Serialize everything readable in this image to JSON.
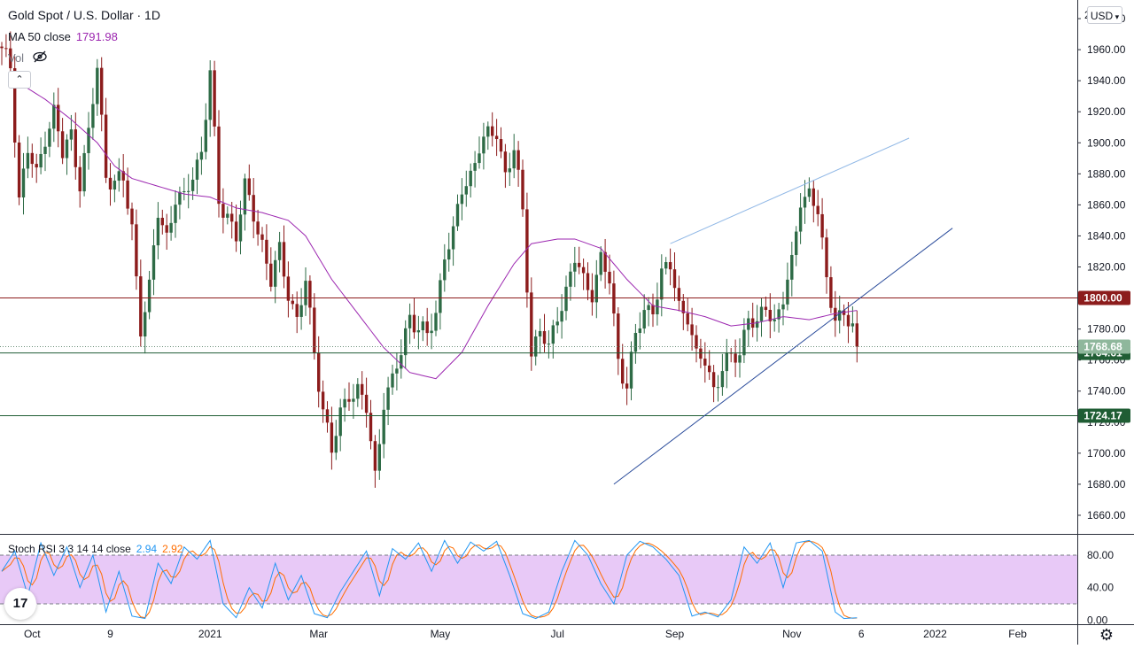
{
  "header": {
    "title": "Gold Spot / U.S. Dollar · 1D",
    "ma_label": "MA 50 close",
    "ma_value": "1791.98",
    "vol_label": "Vol",
    "currency": "USD",
    "first_price_partial": "2"
  },
  "colors": {
    "up": "#2e6b46",
    "down": "#8c1c1c",
    "ma": "#9c27b0",
    "trend": "#2b4c9b",
    "trend_light": "#90b8e6",
    "h1800": "#8c1c1c",
    "h_green": "#1f5d34",
    "stoch_k": "#2196f3",
    "stoch_d": "#ff6d00",
    "stoch_band": "#e8c9f7"
  },
  "chart_data": [
    {
      "type": "candlestick",
      "title": "Gold Spot / U.S. Dollar · 1D",
      "yticks": [
        1660,
        1680,
        1700,
        1720,
        1740,
        1760,
        1780,
        1800,
        1820,
        1840,
        1860,
        1880,
        1900,
        1920,
        1940,
        1960,
        1980
      ],
      "ylim": [
        1648,
        1992
      ],
      "xticks": [
        {
          "label": "Oct",
          "bar": 7
        },
        {
          "label": "9",
          "bar": 25
        },
        {
          "label": "2021",
          "bar": 48
        },
        {
          "label": "Mar",
          "bar": 73
        },
        {
          "label": "May",
          "bar": 101
        },
        {
          "label": "Jul",
          "bar": 128
        },
        {
          "label": "Sep",
          "bar": 155
        },
        {
          "label": "Nov",
          "bar": 182
        },
        {
          "label": "6",
          "bar": 198
        },
        {
          "label": "2022",
          "bar": 215
        },
        {
          "label": "Feb",
          "bar": 234
        }
      ],
      "ohlc_anchors": [
        {
          "bar": 0,
          "close": 1958
        },
        {
          "bar": 2,
          "close": 1950
        },
        {
          "bar": 4,
          "close": 1865
        },
        {
          "bar": 6,
          "close": 1895
        },
        {
          "bar": 8,
          "close": 1878
        },
        {
          "bar": 10,
          "close": 1905
        },
        {
          "bar": 12,
          "close": 1920
        },
        {
          "bar": 14,
          "close": 1892
        },
        {
          "bar": 16,
          "close": 1905
        },
        {
          "bar": 18,
          "close": 1875
        },
        {
          "bar": 20,
          "close": 1905
        },
        {
          "bar": 22,
          "close": 1948
        },
        {
          "bar": 24,
          "close": 1880
        },
        {
          "bar": 26,
          "close": 1875
        },
        {
          "bar": 28,
          "close": 1875
        },
        {
          "bar": 30,
          "close": 1845
        },
        {
          "bar": 32,
          "close": 1782
        },
        {
          "bar": 34,
          "close": 1805
        },
        {
          "bar": 36,
          "close": 1855
        },
        {
          "bar": 38,
          "close": 1840
        },
        {
          "bar": 40,
          "close": 1865
        },
        {
          "bar": 42,
          "close": 1862
        },
        {
          "bar": 44,
          "close": 1880
        },
        {
          "bar": 46,
          "close": 1895
        },
        {
          "bar": 48,
          "close": 1945
        },
        {
          "bar": 50,
          "close": 1860
        },
        {
          "bar": 52,
          "close": 1855
        },
        {
          "bar": 54,
          "close": 1840
        },
        {
          "bar": 56,
          "close": 1870
        },
        {
          "bar": 58,
          "close": 1855
        },
        {
          "bar": 60,
          "close": 1835
        },
        {
          "bar": 62,
          "close": 1810
        },
        {
          "bar": 64,
          "close": 1830
        },
        {
          "bar": 66,
          "close": 1805
        },
        {
          "bar": 68,
          "close": 1785
        },
        {
          "bar": 70,
          "close": 1810
        },
        {
          "bar": 72,
          "close": 1765
        },
        {
          "bar": 74,
          "close": 1730
        },
        {
          "bar": 76,
          "close": 1700
        },
        {
          "bar": 78,
          "close": 1725
        },
        {
          "bar": 80,
          "close": 1740
        },
        {
          "bar": 82,
          "close": 1740
        },
        {
          "bar": 84,
          "close": 1728
        },
        {
          "bar": 86,
          "close": 1685
        },
        {
          "bar": 88,
          "close": 1735
        },
        {
          "bar": 90,
          "close": 1745
        },
        {
          "bar": 92,
          "close": 1765
        },
        {
          "bar": 94,
          "close": 1790
        },
        {
          "bar": 96,
          "close": 1780
        },
        {
          "bar": 98,
          "close": 1775
        },
        {
          "bar": 100,
          "close": 1790
        },
        {
          "bar": 102,
          "close": 1830
        },
        {
          "bar": 104,
          "close": 1840
        },
        {
          "bar": 106,
          "close": 1870
        },
        {
          "bar": 108,
          "close": 1880
        },
        {
          "bar": 110,
          "close": 1898
        },
        {
          "bar": 112,
          "close": 1903
        },
        {
          "bar": 114,
          "close": 1908
        },
        {
          "bar": 116,
          "close": 1880
        },
        {
          "bar": 118,
          "close": 1895
        },
        {
          "bar": 120,
          "close": 1855
        },
        {
          "bar": 122,
          "close": 1765
        },
        {
          "bar": 124,
          "close": 1780
        },
        {
          "bar": 126,
          "close": 1765
        },
        {
          "bar": 128,
          "close": 1790
        },
        {
          "bar": 130,
          "close": 1805
        },
        {
          "bar": 132,
          "close": 1825
        },
        {
          "bar": 134,
          "close": 1810
        },
        {
          "bar": 136,
          "close": 1805
        },
        {
          "bar": 138,
          "close": 1825
        },
        {
          "bar": 140,
          "close": 1810
        },
        {
          "bar": 142,
          "close": 1760
        },
        {
          "bar": 144,
          "close": 1745
        },
        {
          "bar": 146,
          "close": 1775
        },
        {
          "bar": 148,
          "close": 1790
        },
        {
          "bar": 150,
          "close": 1795
        },
        {
          "bar": 152,
          "close": 1815
        },
        {
          "bar": 154,
          "close": 1820
        },
        {
          "bar": 156,
          "close": 1795
        },
        {
          "bar": 158,
          "close": 1790
        },
        {
          "bar": 160,
          "close": 1760
        },
        {
          "bar": 162,
          "close": 1760
        },
        {
          "bar": 164,
          "close": 1742
        },
        {
          "bar": 166,
          "close": 1755
        },
        {
          "bar": 168,
          "close": 1760
        },
        {
          "bar": 170,
          "close": 1765
        },
        {
          "bar": 172,
          "close": 1790
        },
        {
          "bar": 174,
          "close": 1780
        },
        {
          "bar": 176,
          "close": 1795
        },
        {
          "bar": 178,
          "close": 1785
        },
        {
          "bar": 180,
          "close": 1800
        },
        {
          "bar": 182,
          "close": 1820
        },
        {
          "bar": 184,
          "close": 1865
        },
        {
          "bar": 186,
          "close": 1868
        },
        {
          "bar": 188,
          "close": 1855
        },
        {
          "bar": 190,
          "close": 1810
        },
        {
          "bar": 192,
          "close": 1790
        },
        {
          "bar": 194,
          "close": 1788
        },
        {
          "bar": 196,
          "close": 1780
        },
        {
          "bar": 197,
          "close": 1768.68
        }
      ],
      "ma50_anchors": [
        {
          "bar": 3,
          "close": 1945
        },
        {
          "bar": 6,
          "close": 1935
        },
        {
          "bar": 10,
          "close": 1928
        },
        {
          "bar": 16,
          "close": 1915
        },
        {
          "bar": 22,
          "close": 1900
        },
        {
          "bar": 26,
          "close": 1885
        },
        {
          "bar": 30,
          "close": 1877
        },
        {
          "bar": 36,
          "close": 1872
        },
        {
          "bar": 42,
          "close": 1867
        },
        {
          "bar": 48,
          "close": 1865
        },
        {
          "bar": 54,
          "close": 1858
        },
        {
          "bar": 60,
          "close": 1855
        },
        {
          "bar": 66,
          "close": 1850
        },
        {
          "bar": 70,
          "close": 1840
        },
        {
          "bar": 76,
          "close": 1812
        },
        {
          "bar": 82,
          "close": 1790
        },
        {
          "bar": 88,
          "close": 1768
        },
        {
          "bar": 94,
          "close": 1752
        },
        {
          "bar": 100,
          "close": 1748
        },
        {
          "bar": 106,
          "close": 1765
        },
        {
          "bar": 112,
          "close": 1795
        },
        {
          "bar": 118,
          "close": 1822
        },
        {
          "bar": 122,
          "close": 1835
        },
        {
          "bar": 128,
          "close": 1838
        },
        {
          "bar": 132,
          "close": 1838
        },
        {
          "bar": 138,
          "close": 1832
        },
        {
          "bar": 144,
          "close": 1812
        },
        {
          "bar": 150,
          "close": 1795
        },
        {
          "bar": 156,
          "close": 1792
        },
        {
          "bar": 162,
          "close": 1788
        },
        {
          "bar": 168,
          "close": 1782
        },
        {
          "bar": 174,
          "close": 1784
        },
        {
          "bar": 180,
          "close": 1788
        },
        {
          "bar": 186,
          "close": 1786
        },
        {
          "bar": 192,
          "close": 1790
        },
        {
          "bar": 197,
          "close": 1791.98
        }
      ],
      "hlines": [
        {
          "price": 1800.0,
          "label": "1800.00",
          "color_key": "h1800"
        },
        {
          "price": 1764.61,
          "label": "1764.61",
          "color_key": "h_green"
        },
        {
          "price": 1724.17,
          "label": "1724.17",
          "color_key": "h_green"
        }
      ],
      "last_price": {
        "price": 1768.68,
        "label": "1768.68"
      },
      "trendlines": [
        {
          "from": {
            "bar": 141,
            "price": 1680
          },
          "to": {
            "bar": 219,
            "price": 1845
          },
          "color_key": "trend"
        },
        {
          "from": {
            "bar": 154,
            "price": 1835
          },
          "to": {
            "bar": 209,
            "price": 1903
          },
          "color_key": "trend_light"
        }
      ]
    },
    {
      "type": "line",
      "title": "Stoch RSI 3 3 14 14 close",
      "values_shown": {
        "k": "2.94",
        "d": "2.92"
      },
      "yticks": [
        0,
        40,
        80
      ],
      "ytick_labels": [
        "0.00",
        "40.00",
        "80.00"
      ],
      "band": [
        20,
        80
      ],
      "ylim": [
        -5,
        105
      ],
      "k_anchors": [
        {
          "bar": 0,
          "v": 60
        },
        {
          "bar": 3,
          "v": 85
        },
        {
          "bar": 6,
          "v": 30
        },
        {
          "bar": 9,
          "v": 95
        },
        {
          "bar": 12,
          "v": 55
        },
        {
          "bar": 15,
          "v": 90
        },
        {
          "bar": 18,
          "v": 40
        },
        {
          "bar": 21,
          "v": 80
        },
        {
          "bar": 24,
          "v": 10
        },
        {
          "bar": 27,
          "v": 60
        },
        {
          "bar": 30,
          "v": 5
        },
        {
          "bar": 33,
          "v": 2
        },
        {
          "bar": 36,
          "v": 70
        },
        {
          "bar": 39,
          "v": 45
        },
        {
          "bar": 42,
          "v": 90
        },
        {
          "bar": 45,
          "v": 75
        },
        {
          "bar": 48,
          "v": 98
        },
        {
          "bar": 51,
          "v": 20
        },
        {
          "bar": 54,
          "v": 3
        },
        {
          "bar": 57,
          "v": 40
        },
        {
          "bar": 60,
          "v": 15
        },
        {
          "bar": 63,
          "v": 70
        },
        {
          "bar": 66,
          "v": 25
        },
        {
          "bar": 69,
          "v": 55
        },
        {
          "bar": 72,
          "v": 8
        },
        {
          "bar": 75,
          "v": 3
        },
        {
          "bar": 78,
          "v": 35
        },
        {
          "bar": 81,
          "v": 60
        },
        {
          "bar": 84,
          "v": 85
        },
        {
          "bar": 87,
          "v": 30
        },
        {
          "bar": 90,
          "v": 88
        },
        {
          "bar": 93,
          "v": 75
        },
        {
          "bar": 96,
          "v": 95
        },
        {
          "bar": 99,
          "v": 60
        },
        {
          "bar": 102,
          "v": 98
        },
        {
          "bar": 105,
          "v": 70
        },
        {
          "bar": 108,
          "v": 96
        },
        {
          "bar": 111,
          "v": 85
        },
        {
          "bar": 114,
          "v": 97
        },
        {
          "bar": 117,
          "v": 55
        },
        {
          "bar": 120,
          "v": 8
        },
        {
          "bar": 123,
          "v": 2
        },
        {
          "bar": 126,
          "v": 10
        },
        {
          "bar": 129,
          "v": 60
        },
        {
          "bar": 132,
          "v": 98
        },
        {
          "bar": 135,
          "v": 80
        },
        {
          "bar": 138,
          "v": 45
        },
        {
          "bar": 141,
          "v": 20
        },
        {
          "bar": 144,
          "v": 80
        },
        {
          "bar": 147,
          "v": 97
        },
        {
          "bar": 150,
          "v": 90
        },
        {
          "bar": 153,
          "v": 75
        },
        {
          "bar": 156,
          "v": 55
        },
        {
          "bar": 159,
          "v": 5
        },
        {
          "bar": 162,
          "v": 10
        },
        {
          "bar": 165,
          "v": 4
        },
        {
          "bar": 168,
          "v": 25
        },
        {
          "bar": 171,
          "v": 90
        },
        {
          "bar": 174,
          "v": 70
        },
        {
          "bar": 177,
          "v": 95
        },
        {
          "bar": 180,
          "v": 40
        },
        {
          "bar": 183,
          "v": 95
        },
        {
          "bar": 186,
          "v": 98
        },
        {
          "bar": 189,
          "v": 85
        },
        {
          "bar": 192,
          "v": 10
        },
        {
          "bar": 194,
          "v": 2
        },
        {
          "bar": 197,
          "v": 2.94
        }
      ]
    }
  ]
}
